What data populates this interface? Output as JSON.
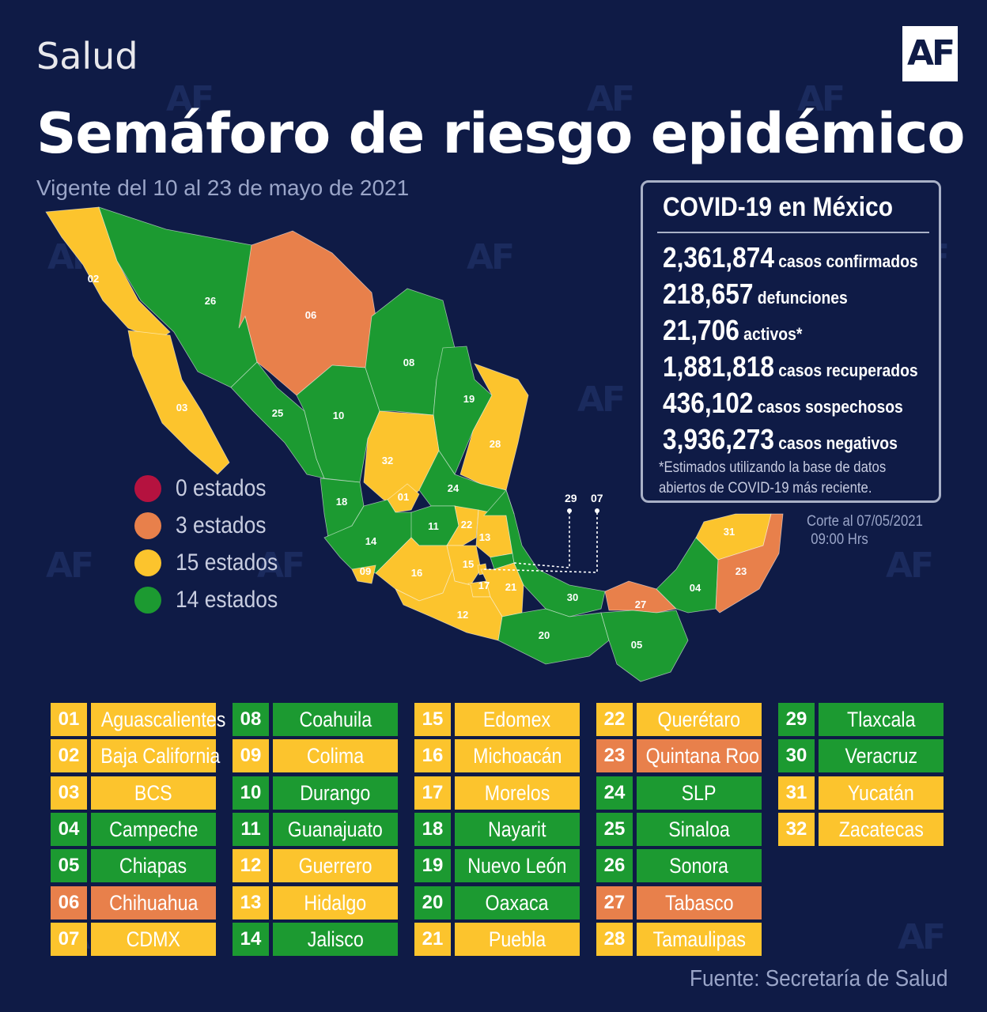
{
  "header": {
    "section": "Salud",
    "logo": "AF",
    "title": "Semáforo de riesgo epidémico",
    "subtitle": "Vigente del 10 al 23 de mayo de 2021"
  },
  "colors": {
    "background": "#0f1b46",
    "rojo": "#b5123f",
    "naranja": "#e8804b",
    "amarillo": "#fcc42d",
    "verde": "#1c9a31"
  },
  "stats": {
    "title": "COVID-19 en México",
    "rows": [
      {
        "num": "2,361,874",
        "label": "casos confirmados"
      },
      {
        "num": "218,657",
        "label": "defunciones"
      },
      {
        "num": "21,706",
        "label": "activos*"
      },
      {
        "num": "1,881,818",
        "label": "casos recuperados"
      },
      {
        "num": "436,102",
        "label": "casos sospechosos"
      },
      {
        "num": "3,936,273",
        "label": "casos negativos"
      }
    ],
    "note_line1": "*Estimados utilizando la base de datos",
    "note_line2": "abiertos de COVID-19 más reciente."
  },
  "cutoff": {
    "line1": "Corte al 07/05/2021",
    "line2": "09:00 Hrs"
  },
  "legend": [
    {
      "color": "rojo",
      "label": "0 estados"
    },
    {
      "color": "naranja",
      "label": "3 estados"
    },
    {
      "color": "amarillo",
      "label": "15 estados"
    },
    {
      "color": "verde",
      "label": "14 estados"
    }
  ],
  "callouts": [
    "29",
    "07"
  ],
  "states": [
    {
      "num": "01",
      "name": "Aguascalientes",
      "color": "amarillo"
    },
    {
      "num": "02",
      "name": "Baja California",
      "color": "amarillo"
    },
    {
      "num": "03",
      "name": "BCS",
      "color": "amarillo"
    },
    {
      "num": "04",
      "name": "Campeche",
      "color": "verde"
    },
    {
      "num": "05",
      "name": "Chiapas",
      "color": "verde"
    },
    {
      "num": "06",
      "name": "Chihuahua",
      "color": "naranja"
    },
    {
      "num": "07",
      "name": "CDMX",
      "color": "amarillo"
    },
    {
      "num": "08",
      "name": "Coahuila",
      "color": "verde"
    },
    {
      "num": "09",
      "name": "Colima",
      "color": "amarillo"
    },
    {
      "num": "10",
      "name": "Durango",
      "color": "verde"
    },
    {
      "num": "11",
      "name": "Guanajuato",
      "color": "verde"
    },
    {
      "num": "12",
      "name": "Guerrero",
      "color": "amarillo"
    },
    {
      "num": "13",
      "name": "Hidalgo",
      "color": "amarillo"
    },
    {
      "num": "14",
      "name": "Jalisco",
      "color": "verde"
    },
    {
      "num": "15",
      "name": "Edomex",
      "color": "amarillo"
    },
    {
      "num": "16",
      "name": "Michoacán",
      "color": "amarillo"
    },
    {
      "num": "17",
      "name": "Morelos",
      "color": "amarillo"
    },
    {
      "num": "18",
      "name": "Nayarit",
      "color": "verde"
    },
    {
      "num": "19",
      "name": "Nuevo León",
      "color": "verde"
    },
    {
      "num": "20",
      "name": "Oaxaca",
      "color": "verde"
    },
    {
      "num": "21",
      "name": "Puebla",
      "color": "amarillo"
    },
    {
      "num": "22",
      "name": "Querétaro",
      "color": "amarillo"
    },
    {
      "num": "23",
      "name": "Quintana Roo",
      "color": "naranja"
    },
    {
      "num": "24",
      "name": "SLP",
      "color": "verde"
    },
    {
      "num": "25",
      "name": "Sinaloa",
      "color": "verde"
    },
    {
      "num": "26",
      "name": "Sonora",
      "color": "verde"
    },
    {
      "num": "27",
      "name": "Tabasco",
      "color": "naranja"
    },
    {
      "num": "28",
      "name": "Tamaulipas",
      "color": "amarillo"
    },
    {
      "num": "29",
      "name": "Tlaxcala",
      "color": "verde"
    },
    {
      "num": "30",
      "name": "Veracruz",
      "color": "verde"
    },
    {
      "num": "31",
      "name": "Yucatán",
      "color": "amarillo"
    },
    {
      "num": "32",
      "name": "Zacatecas",
      "color": "amarillo"
    }
  ],
  "source": "Fuente: Secretaría de Salud"
}
